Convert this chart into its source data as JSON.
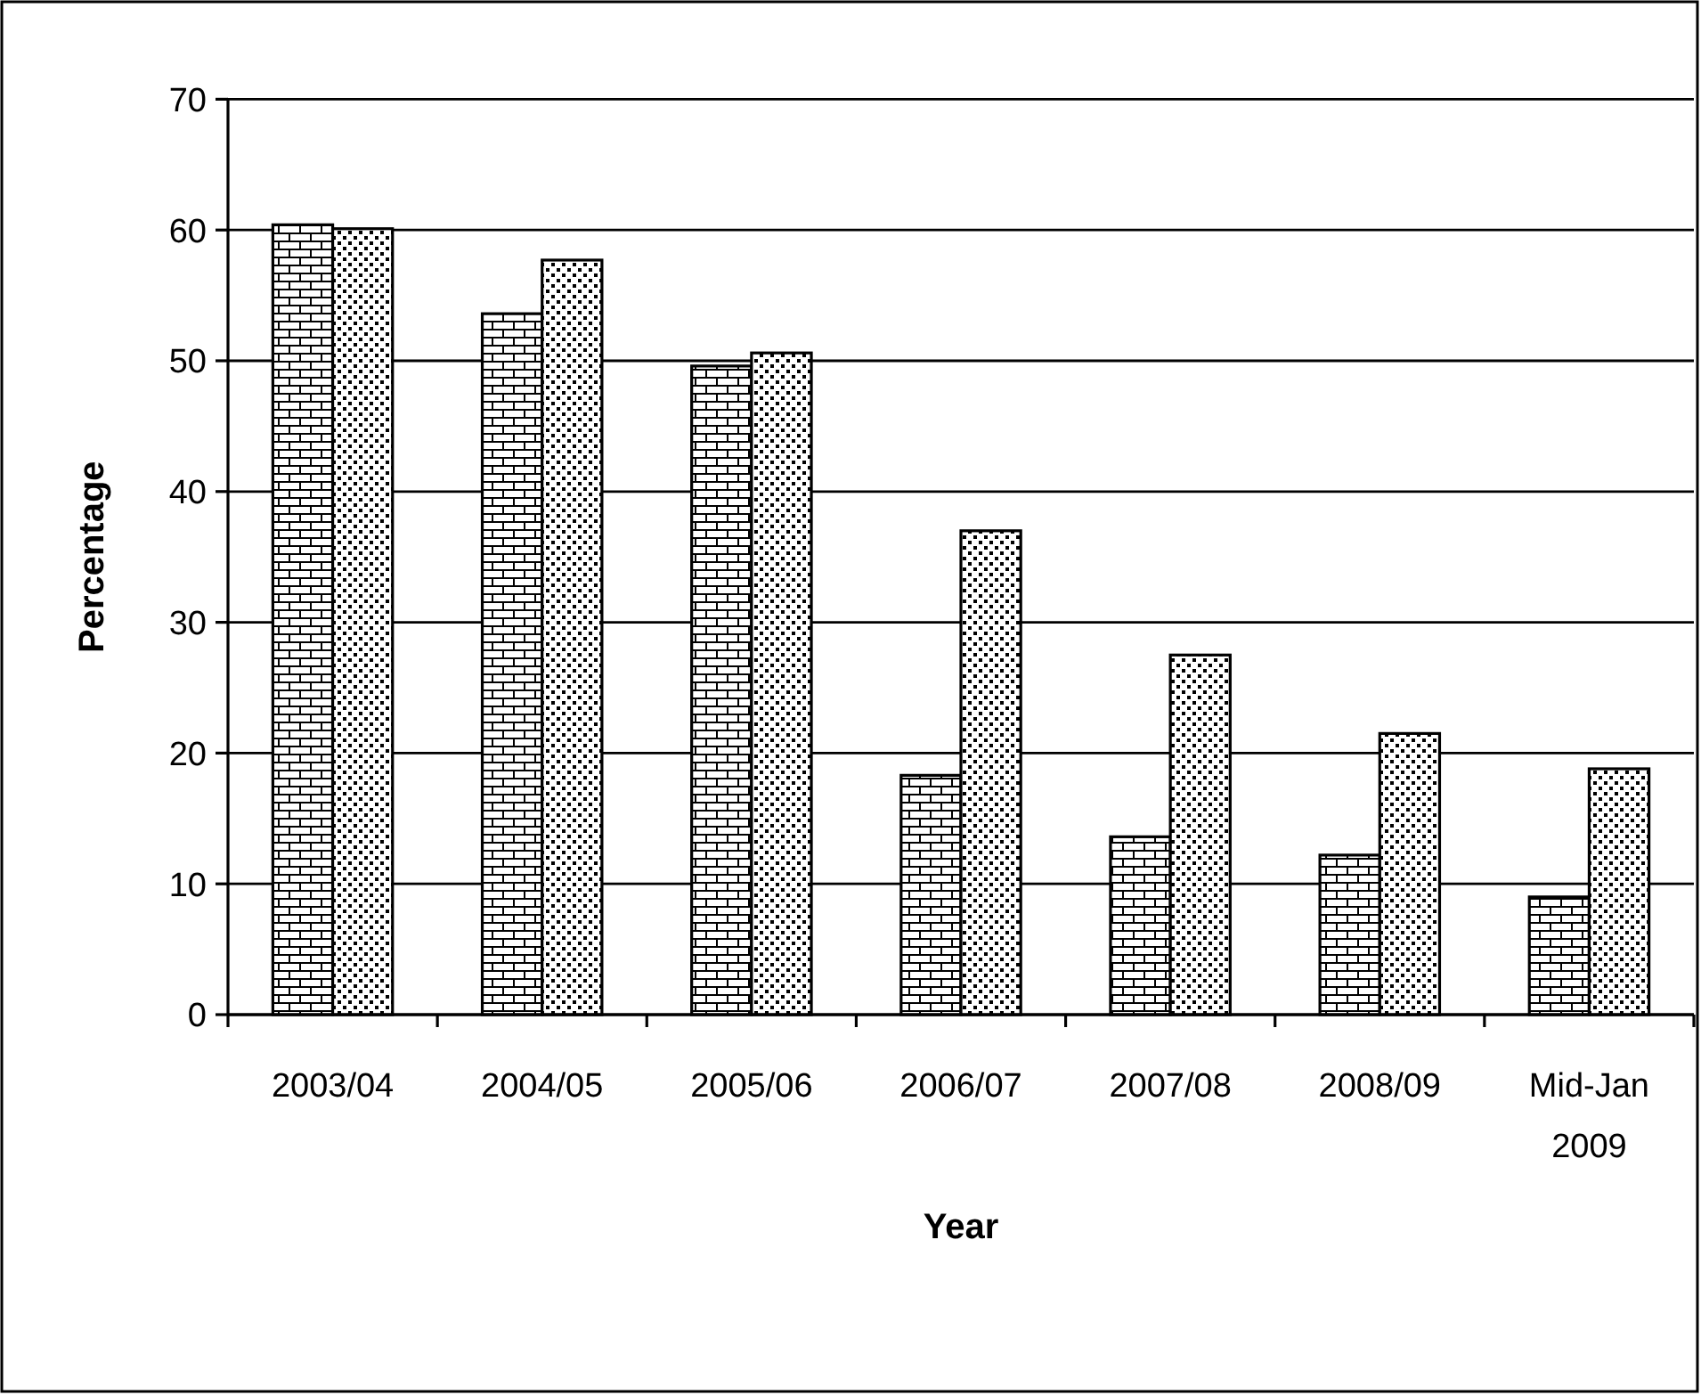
{
  "chart_data": {
    "type": "bar",
    "xlabel": "Year",
    "ylabel": "Percentage",
    "categories": [
      "2003/04",
      "2004/05",
      "2005/06",
      "2006/07",
      "2007/08",
      "2008/09",
      "Mid-Jan 2009"
    ],
    "series": [
      {
        "color": "#000000",
        "values": [
          60.4,
          53.6,
          49.6,
          18.3,
          13.6,
          12.2,
          9.0
        ]
      },
      {
        "color": "#000000",
        "values": [
          60.1,
          57.7,
          50.6,
          37.0,
          27.5,
          21.5,
          18.8
        ]
      }
    ],
    "ylim": [
      0,
      70
    ],
    "yticks": [
      0,
      10,
      20,
      30,
      40,
      50,
      60,
      70
    ],
    "grid": "y"
  }
}
